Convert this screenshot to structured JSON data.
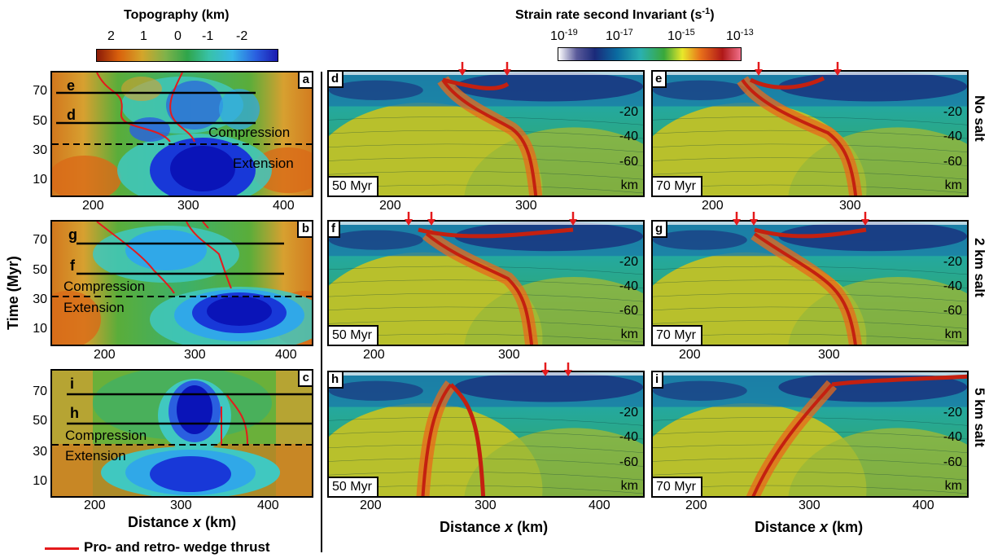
{
  "topo_colorbar": {
    "title": "Topography (km)",
    "ticks": [
      "2",
      "1",
      "0",
      "-1",
      "-2"
    ]
  },
  "strain_colorbar": {
    "title": "Strain rate second Invariant (s",
    "title_sup": "-1",
    "title_end": ")",
    "ticks": [
      {
        "base": "10",
        "exp": "-19"
      },
      {
        "base": "10",
        "exp": "-17"
      },
      {
        "base": "10",
        "exp": "-15"
      },
      {
        "base": "10",
        "exp": "-13"
      }
    ]
  },
  "left_panels": [
    {
      "letter": "a",
      "upper_line": "e",
      "lower_line": "d",
      "compression": "Compression",
      "extension": "Extension",
      "xticks": [
        "200",
        "300",
        "400"
      ]
    },
    {
      "letter": "b",
      "upper_line": "g",
      "lower_line": "f",
      "compression": "Compression",
      "extension": "Extension",
      "xticks": [
        "200",
        "300",
        "400"
      ]
    },
    {
      "letter": "c",
      "upper_line": "i",
      "lower_line": "h",
      "compression": "Compression",
      "extension": "Extension",
      "xticks": [
        "200",
        "300",
        "400"
      ]
    }
  ],
  "left_yticks": [
    "70",
    "50",
    "30",
    "10"
  ],
  "y_axis_label": "Time (Myr)",
  "x_axis_label_prefix": "Distance ",
  "x_axis_label_var": "x",
  "x_axis_label_suffix": " (km)",
  "legend": {
    "label": "Pro- and retro- wedge thrust",
    "color": "#e41a1c"
  },
  "right_panels": [
    {
      "letter": "d",
      "time": "50 Myr"
    },
    {
      "letter": "e",
      "time": "70 Myr"
    },
    {
      "letter": "f",
      "time": "50 Myr"
    },
    {
      "letter": "g",
      "time": "70 Myr"
    },
    {
      "letter": "h",
      "time": "50 Myr"
    },
    {
      "letter": "i",
      "time": "70 Myr"
    }
  ],
  "depth_ticks": [
    "-20",
    "-40",
    "-60"
  ],
  "depth_unit": "km",
  "right_xticks": [
    "200",
    "300",
    "400"
  ],
  "row_titles": [
    "No salt",
    "2 km salt",
    "5 km salt"
  ],
  "colors": {
    "thrust_red": "#e41a1c",
    "arrow_red": "#e41a1c"
  }
}
